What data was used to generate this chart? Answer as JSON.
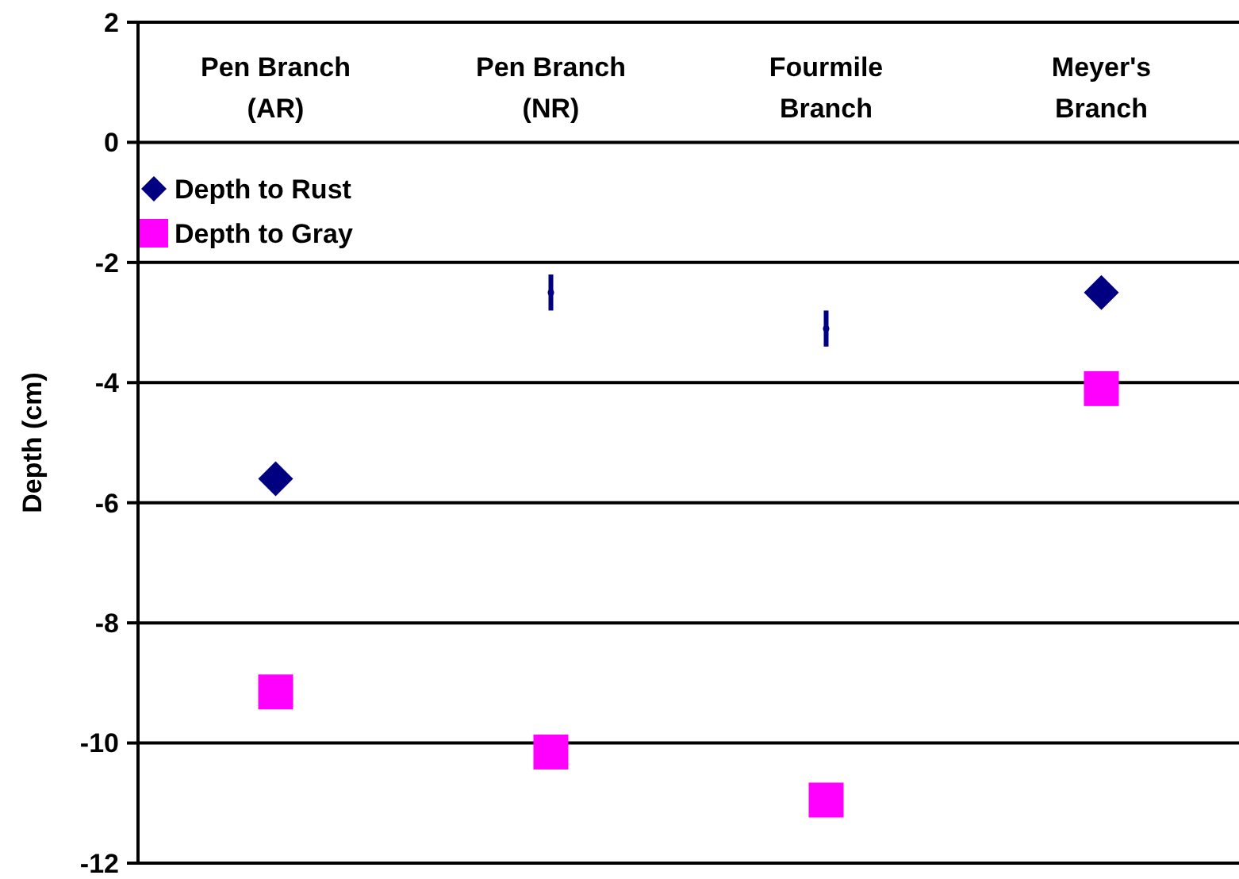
{
  "chart_data": {
    "type": "scatter",
    "ylabel": "Depth (cm)",
    "categories": [
      "Pen Branch\n(AR)",
      "Pen Branch\n(NR)",
      "Fourmile\nBranch",
      "Meyer's\nBranch"
    ],
    "series": [
      {
        "name": "Depth to Rust",
        "color": "#000080",
        "marker": "diamond",
        "values": [
          -5.6,
          null,
          null,
          -2.5
        ]
      },
      {
        "name": "Depth to Gray",
        "color": "#ff00ff",
        "marker": "square",
        "values": [
          -9.15,
          -10.15,
          -10.95,
          -4.1
        ]
      },
      {
        "color": "#000080",
        "marker": "circle",
        "values": [
          null,
          -2.5,
          -3.1,
          null
        ],
        "errors": [
          null,
          0.3,
          0.3,
          null
        ]
      }
    ],
    "ylim": [
      -12,
      2
    ],
    "yticks": [
      -12,
      -10,
      -8,
      -6,
      -4,
      -2,
      0,
      2
    ],
    "grid": "y",
    "legend": "top left"
  }
}
